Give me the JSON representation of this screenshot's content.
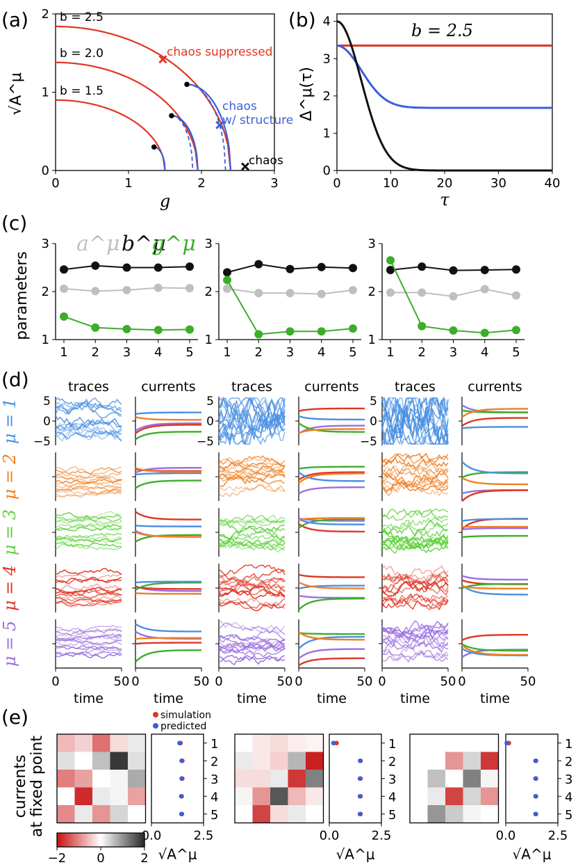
{
  "colors": {
    "red": "#e03524",
    "blue": "#3a5fd9",
    "black": "#111111",
    "gray": "#bfbfbf",
    "green": "#3cae2a",
    "orange": "#f07f22",
    "purple": "#9a6ee0",
    "light_blue": "#4a90e2",
    "light_green": "#5ed13b"
  },
  "panels": {
    "a": {
      "label": "(a)",
      "chart_data": {
        "type": "line",
        "xlabel": "g",
        "ylabel": "√A^μ",
        "xlim": [
          0,
          3
        ],
        "ylim": [
          0,
          2
        ],
        "xticks": [
          "0",
          "1",
          "2",
          "3"
        ],
        "yticks": [
          "0",
          "1",
          "2"
        ],
        "curve_labels": [
          "b = 2.5",
          "b = 2.0",
          "b = 1.5"
        ],
        "radii_b": [
          1.84,
          1.38,
          0.9
        ],
        "x_ends": [
          2.4,
          1.95,
          1.5
        ],
        "markers": [
          {
            "g": 1.47,
            "A": 1.42,
            "label": "chaos suppressed",
            "color": "red"
          },
          {
            "g": 2.25,
            "A": 0.58,
            "label": "chaos\nw/ structure",
            "color": "blue"
          },
          {
            "g": 2.6,
            "A": 0.05,
            "label": "chaos",
            "color": "black"
          }
        ],
        "dots": [
          [
            1.35,
            0.3
          ],
          [
            1.59,
            0.7
          ],
          [
            1.8,
            1.1
          ]
        ]
      }
    },
    "b": {
      "label": "(b)",
      "title": "b = 2.5",
      "chart_data": {
        "type": "line",
        "xlabel": "τ",
        "ylabel": "Δ^μ(τ)",
        "xlim": [
          0,
          40
        ],
        "ylim": [
          0,
          4.2
        ],
        "xticks": [
          "0",
          "10",
          "20",
          "30",
          "40"
        ],
        "yticks": [
          "0",
          "1",
          "2",
          "3",
          "4"
        ],
        "series": [
          {
            "name": "red",
            "start": 3.35,
            "end": 3.35,
            "tau": 10
          },
          {
            "name": "blue",
            "start": 3.35,
            "end": 1.68,
            "tau": 4.5
          },
          {
            "name": "black",
            "start": 4.0,
            "end": 0.0,
            "tau": 4.5
          }
        ]
      }
    },
    "c": {
      "label": "(c)",
      "ylabel": "parameters",
      "legend": [
        "a^μ",
        "b^μ",
        "g^μ"
      ],
      "chart_data": [
        {
          "type": "line",
          "x": [
            1,
            2,
            3,
            4,
            5
          ],
          "ylim": [
            1,
            3
          ],
          "series": [
            {
              "name": "b",
              "values": [
                2.46,
                2.54,
                2.5,
                2.5,
                2.52
              ]
            },
            {
              "name": "a",
              "values": [
                2.06,
                2.01,
                2.03,
                2.08,
                2.07
              ]
            },
            {
              "name": "g",
              "values": [
                1.48,
                1.25,
                1.22,
                1.2,
                1.21
              ]
            }
          ]
        },
        {
          "type": "line",
          "x": [
            1,
            2,
            3,
            4,
            5
          ],
          "ylim": [
            1,
            3
          ],
          "series": [
            {
              "name": "b",
              "values": [
                2.4,
                2.57,
                2.47,
                2.51,
                2.49
              ]
            },
            {
              "name": "a",
              "values": [
                2.06,
                1.97,
                1.97,
                1.95,
                2.03
              ]
            },
            {
              "name": "g",
              "values": [
                2.24,
                1.11,
                1.17,
                1.17,
                1.23
              ]
            }
          ]
        },
        {
          "type": "line",
          "x": [
            1,
            2,
            3,
            4,
            5
          ],
          "ylim": [
            1,
            3
          ],
          "series": [
            {
              "name": "b",
              "values": [
                2.45,
                2.52,
                2.44,
                2.45,
                2.46
              ]
            },
            {
              "name": "a",
              "values": [
                1.98,
                1.98,
                1.9,
                2.05,
                1.92
              ]
            },
            {
              "name": "g",
              "values": [
                2.65,
                1.28,
                1.19,
                1.14,
                1.2
              ]
            }
          ]
        }
      ],
      "xticks": [
        "1",
        "2",
        "3",
        "4",
        "5"
      ],
      "yticks": [
        "1",
        "2",
        "3"
      ]
    },
    "d": {
      "label": "(d)",
      "column_titles": [
        "traces",
        "currents",
        "traces",
        "currents",
        "traces",
        "currents"
      ],
      "row_labels": [
        "μ = 1",
        "μ = 2",
        "μ = 3",
        "μ = 4",
        "μ = 5"
      ],
      "xlabel": "time",
      "xticks": [
        "0",
        "50"
      ],
      "yticks": [
        "5",
        "0",
        "−5"
      ]
    },
    "e": {
      "label": "(e)",
      "ylabel_line1": "currents",
      "ylabel_line2": "at fixed point",
      "legend": [
        "simulation",
        "predicted"
      ],
      "colorbar_ticks": [
        "−2",
        "0",
        "2"
      ],
      "xticks": [
        "0.0",
        "2.5"
      ],
      "row_ticks": [
        "1",
        "2",
        "3",
        "4",
        "5"
      ],
      "xlabel": "√A^μ",
      "heatmaps": [
        [
          [
            -0.6,
            -0.4,
            -1.2,
            -0.3,
            0.2
          ],
          [
            0.3,
            0.0,
            0.6,
            1.9,
            0.3
          ],
          [
            -1.1,
            -0.8,
            0.0,
            0.1,
            0.8
          ],
          [
            0.0,
            -1.8,
            0.2,
            0.1,
            -0.8
          ],
          [
            -1.0,
            0.2,
            -0.9,
            0.4,
            0.0
          ]
        ],
        [
          [
            0.0,
            -0.2,
            -0.3,
            -0.15,
            -0.1
          ],
          [
            0.2,
            -0.2,
            -0.4,
            0.7,
            -1.9
          ],
          [
            -0.3,
            -0.3,
            0.2,
            -1.7,
            1.2
          ],
          [
            0.1,
            -0.9,
            1.6,
            -0.6,
            -0.2
          ],
          [
            0.0,
            -1.6,
            -0.3,
            0.2,
            0.0
          ]
        ],
        [
          [
            0.0,
            0.0,
            0.0,
            0.0,
            0.0
          ],
          [
            0.0,
            0.0,
            -0.9,
            0.4,
            -1.7
          ],
          [
            0.0,
            0.6,
            0.0,
            1.2,
            0.1
          ],
          [
            0.0,
            0.2,
            -1.6,
            0.4,
            -0.9
          ],
          [
            0.0,
            1.0,
            0.5,
            0.1,
            0.0
          ]
        ]
      ],
      "dots": [
        {
          "sim": [
            1.4,
            1.48,
            1.48,
            1.45,
            1.46
          ],
          "pred": [
            1.35,
            1.45,
            1.45,
            1.43,
            1.44
          ]
        },
        {
          "sim": [
            0.35,
            1.5,
            1.5,
            1.5,
            1.5
          ],
          "pred": [
            0.2,
            1.48,
            1.47,
            1.47,
            1.47
          ]
        },
        {
          "sim": [
            0.15,
            1.45,
            1.45,
            1.45,
            1.45
          ],
          "pred": [
            0.05,
            1.43,
            1.43,
            1.43,
            1.43
          ]
        }
      ]
    }
  }
}
